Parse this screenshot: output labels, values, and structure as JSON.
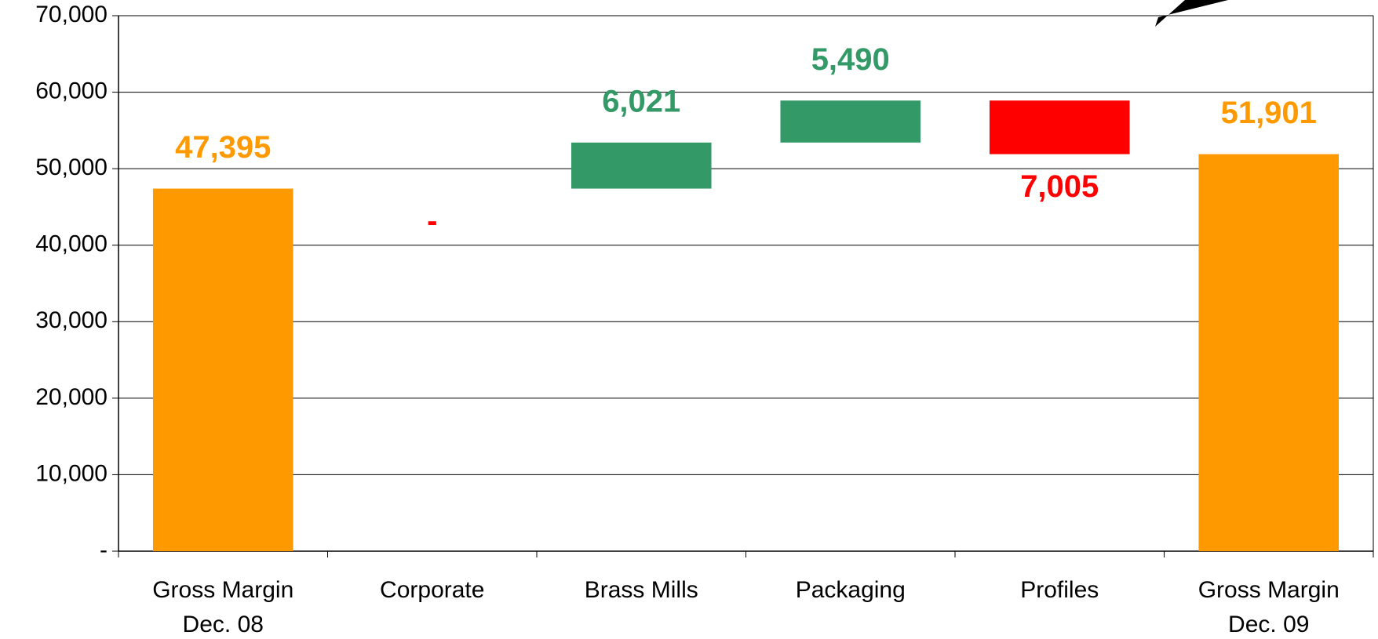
{
  "chart_data": {
    "type": "waterfall",
    "categories": [
      "Gross Margin\nDec. 08",
      "Corporate",
      "Brass Mills",
      "Packaging",
      "Profiles",
      "Gross Margin\nDec. 09"
    ],
    "values": [
      47395,
      0,
      6021,
      5490,
      -7005,
      51901
    ],
    "value_labels": [
      "47,395",
      "-",
      "6,021",
      "5,490",
      "7,005",
      "51,901"
    ],
    "kinds": [
      "total",
      "decrease",
      "increase",
      "increase",
      "decrease",
      "total"
    ],
    "colors": {
      "total": "#ff9900",
      "increase": "#339966",
      "decrease": "#ff0000"
    },
    "ylim": [
      0,
      70000
    ],
    "yticks": [
      {
        "value": 0,
        "label": "-"
      },
      {
        "value": 10000,
        "label": "10,000"
      },
      {
        "value": 20000,
        "label": "20,000"
      },
      {
        "value": 30000,
        "label": "30,000"
      },
      {
        "value": 40000,
        "label": "40,000"
      },
      {
        "value": 50000,
        "label": "50,000"
      },
      {
        "value": 60000,
        "label": "60,000"
      },
      {
        "value": 70000,
        "label": "70,000"
      }
    ],
    "grid": true
  }
}
